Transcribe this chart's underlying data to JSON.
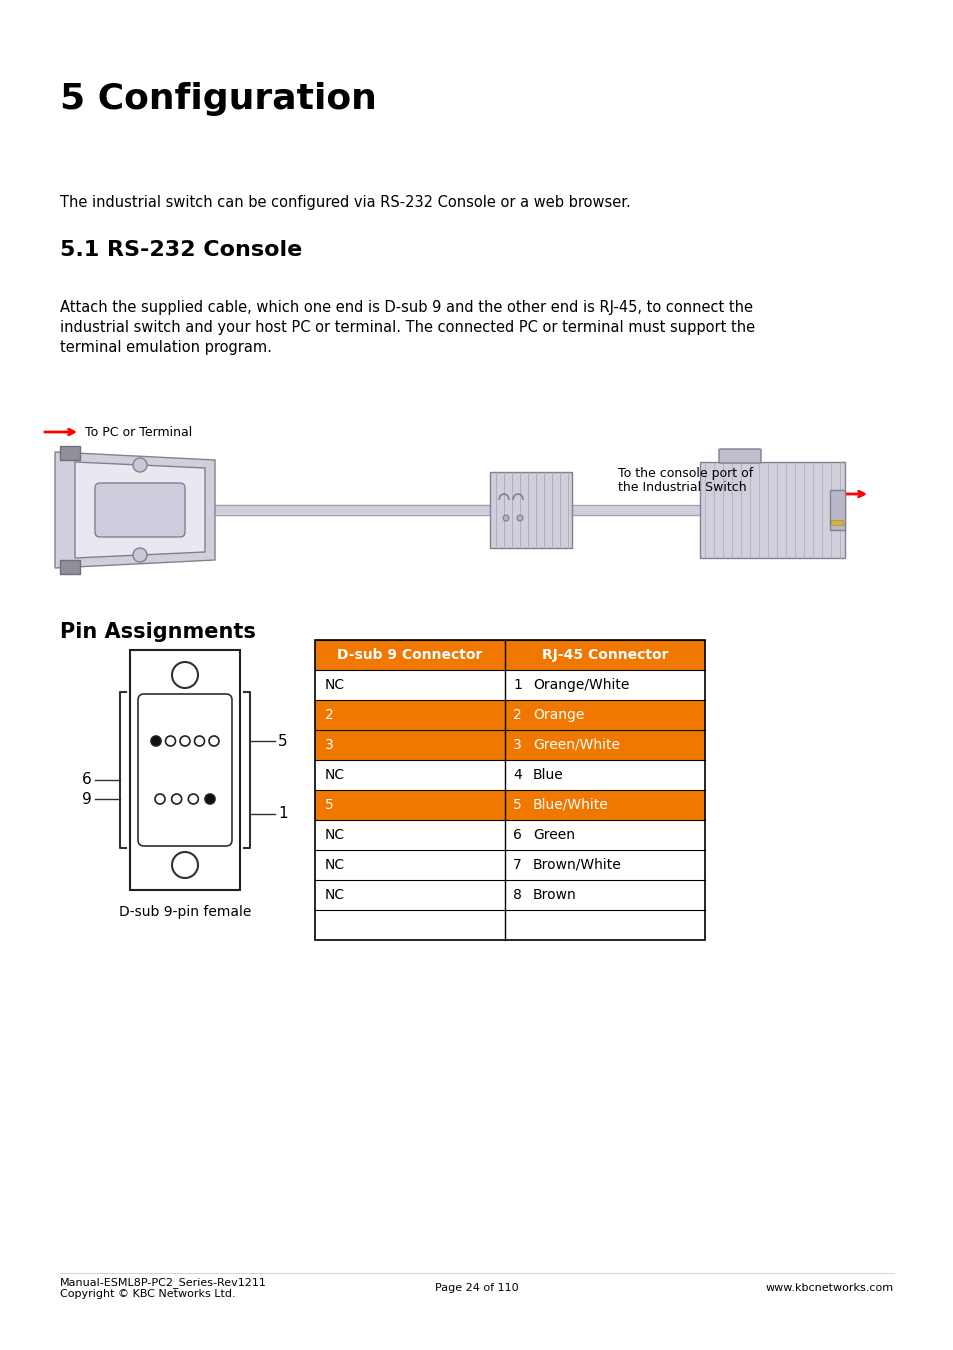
{
  "title": "5 Configuration",
  "section_title": "5.1 RS-232 Console",
  "intro_text": "The industrial switch can be configured via RS-232 Console or a web browser.",
  "body_line1": "Attach the supplied cable, which one end is D-sub 9 and the other end is RJ-45, to connect the",
  "body_line2": "industrial switch and your host PC or terminal. The connected PC or terminal must support the",
  "body_line3": "terminal emulation program.",
  "pin_section_title": "Pin Assignments",
  "connector_label": "D-sub 9-pin female",
  "table_header": [
    "D-sub 9 Connector",
    "RJ-45 Connector"
  ],
  "header_color": "#F07800",
  "table_rows": [
    {
      "dsub": "NC",
      "rj45_num": "1",
      "rj45_name": "Orange/White",
      "highlight": false
    },
    {
      "dsub": "2",
      "rj45_num": "2",
      "rj45_name": "Orange",
      "highlight": true
    },
    {
      "dsub": "3",
      "rj45_num": "3",
      "rj45_name": "Green/White",
      "highlight": true
    },
    {
      "dsub": "NC",
      "rj45_num": "4",
      "rj45_name": "Blue",
      "highlight": false
    },
    {
      "dsub": "5",
      "rj45_num": "5",
      "rj45_name": "Blue/White",
      "highlight": true
    },
    {
      "dsub": "NC",
      "rj45_num": "6",
      "rj45_name": "Green",
      "highlight": false
    },
    {
      "dsub": "NC",
      "rj45_num": "7",
      "rj45_name": "Brown/White",
      "highlight": false
    },
    {
      "dsub": "NC",
      "rj45_num": "8",
      "rj45_name": "Brown",
      "highlight": false
    }
  ],
  "highlight_color": "#F07800",
  "highlight_text_color": "#FFFFFF",
  "normal_text_color": "#000000",
  "border_color": "#F07800",
  "table_border_dark": "#000000",
  "footer_left1": "Manual-ESML8P-PC2_Series-Rev1211",
  "footer_left2": "Copyright © KBC Networks Ltd.",
  "footer_center": "Page 24 of 110",
  "footer_right": "www.kbcnetworks.com",
  "bg_color": "#FFFFFF",
  "left_label_9": "9",
  "left_label_6": "6",
  "right_label_5": "5",
  "right_label_1": "1",
  "arrow_left_label": "To PC or Terminal",
  "arrow_right_label1": "To the console port of",
  "arrow_right_label2": "the Industrial Switch"
}
